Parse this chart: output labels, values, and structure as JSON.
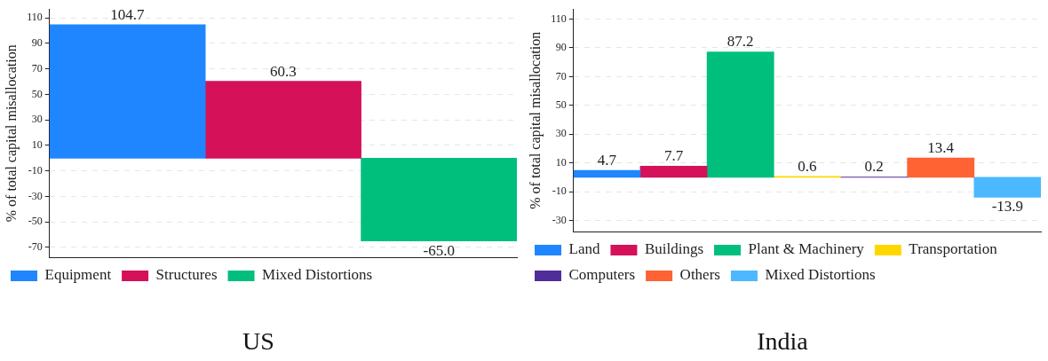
{
  "chart_data": [
    {
      "type": "bar",
      "title": "US",
      "ylabel": "% of total capital misallocation",
      "categories": [
        null,
        null,
        null
      ],
      "series": [
        {
          "name": "Equipment",
          "color": "#1f86ff",
          "values": [
            104.7,
            null,
            null
          ],
          "value_labels": [
            "104.7",
            null,
            null
          ]
        },
        {
          "name": "Structures",
          "color": "#d41159",
          "values": [
            null,
            60.3,
            null
          ],
          "value_labels": [
            null,
            "60.3",
            null
          ]
        },
        {
          "name": "Mixed Distortions",
          "color": "#00bf7d",
          "values": [
            null,
            null,
            -65.0
          ],
          "value_labels": [
            null,
            null,
            "-65.0"
          ]
        }
      ],
      "ylim": [
        -78,
        117
      ],
      "yticks": [
        -70,
        -50,
        -30,
        -10,
        10,
        30,
        50,
        70,
        90,
        110
      ],
      "grid": "y",
      "legend": "bottom"
    },
    {
      "type": "bar",
      "title": "India",
      "ylabel": "% of total capital misallocation",
      "categories": [
        null,
        null,
        null,
        null,
        null,
        null,
        null
      ],
      "series": [
        {
          "name": "Land",
          "color": "#1f86ff",
          "values": [
            4.7,
            null,
            null,
            null,
            null,
            null,
            null
          ],
          "value_labels": [
            "4.7",
            null,
            null,
            null,
            null,
            null,
            null
          ]
        },
        {
          "name": "Buildings",
          "color": "#d41159",
          "values": [
            null,
            7.7,
            null,
            null,
            null,
            null,
            null
          ],
          "value_labels": [
            null,
            "7.7",
            null,
            null,
            null,
            null,
            null
          ]
        },
        {
          "name": "Plant & Machinery",
          "color": "#00bf7d",
          "values": [
            null,
            null,
            87.2,
            null,
            null,
            null,
            null
          ],
          "value_labels": [
            null,
            null,
            "87.2",
            null,
            null,
            null,
            null
          ]
        },
        {
          "name": "Transportation",
          "color": "#ffd700",
          "values": [
            null,
            null,
            null,
            0.6,
            null,
            null,
            null
          ],
          "value_labels": [
            null,
            null,
            null,
            "0.6",
            null,
            null,
            null
          ]
        },
        {
          "name": "Computers",
          "color": "#512d9a",
          "values": [
            null,
            null,
            null,
            null,
            0.2,
            null,
            null
          ],
          "value_labels": [
            null,
            null,
            null,
            null,
            "0.2",
            null,
            null
          ]
        },
        {
          "name": "Others",
          "color": "#ff6233",
          "values": [
            null,
            null,
            null,
            null,
            null,
            13.4,
            null
          ],
          "value_labels": [
            null,
            null,
            null,
            null,
            null,
            "13.4",
            null
          ]
        },
        {
          "name": "Mixed Distortions",
          "color": "#4cb8ff",
          "values": [
            null,
            null,
            null,
            null,
            null,
            null,
            -13.9
          ],
          "value_labels": [
            null,
            null,
            null,
            null,
            null,
            null,
            "-13.9"
          ]
        }
      ],
      "ylim": [
        -38,
        117
      ],
      "yticks": [
        -30,
        -10,
        10,
        30,
        50,
        70,
        90,
        110
      ],
      "grid": "y",
      "legend": "bottom"
    }
  ]
}
